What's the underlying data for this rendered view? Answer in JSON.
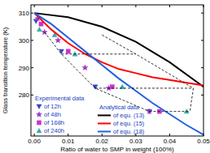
{
  "chart_data": {
    "type": "scatter",
    "xlabel": "Ratio of water to SMP in weight (100%)",
    "ylabel": "Glass transition temperature (K)",
    "xlim": [
      -0.001,
      0.05
    ],
    "ylim": [
      265,
      313
    ],
    "xticks": [
      {
        "value": 0,
        "label": "0.00"
      },
      {
        "value": 0.01,
        "label": "0.01"
      },
      {
        "value": 0.02,
        "label": "0.02"
      },
      {
        "value": 0.03,
        "label": "0.03"
      },
      {
        "value": 0.04,
        "label": "0.04"
      },
      {
        "value": 0.05,
        "label": "0.05"
      }
    ],
    "yticks": [
      280,
      290,
      300,
      310
    ],
    "legend": "lower left",
    "annotations": [
      "Experimental data",
      "Analytical data"
    ],
    "series": [
      {
        "name": "of 12h",
        "type": "scatter",
        "marker": "triangle-down",
        "color": "#3344cc",
        "x": [
          0.0005,
          0.008,
          0.018,
          0.034
        ],
        "values": [
          307,
          296,
          283,
          274
        ]
      },
      {
        "name": "of 48h",
        "type": "scatter",
        "marker": "star",
        "color": "#9933cc",
        "x": [
          0.001,
          0.003,
          0.007,
          0.015,
          0.022,
          0.034
        ],
        "values": [
          308,
          303,
          300,
          290,
          282.5,
          274
        ]
      },
      {
        "name": "of 168h",
        "type": "scatter",
        "marker": "square",
        "color": "#cc33cc",
        "x": [
          0.002,
          0.01,
          0.023,
          0.037
        ],
        "values": [
          306,
          296,
          283,
          274
        ]
      },
      {
        "name": "of 240h",
        "type": "scatter",
        "marker": "triangle-up",
        "color": "#33aaaa",
        "x": [
          0.0015,
          0.006,
          0.012,
          0.026,
          0.045
        ],
        "values": [
          304,
          302,
          295,
          283,
          274
        ]
      },
      {
        "name": "of equ. (13)",
        "type": "line",
        "line_style": "solid",
        "color": "#000000",
        "x": [
          0,
          0.01,
          0.02,
          0.03,
          0.04,
          0.05
        ],
        "values": [
          310,
          308.5,
          305,
          299.5,
          292,
          283
        ]
      },
      {
        "name": "of equ. (15)",
        "type": "line",
        "line_style": "solid",
        "color": "#ff0000",
        "x": [
          0,
          0.005,
          0.01,
          0.015,
          0.02,
          0.025,
          0.03,
          0.035,
          0.04,
          0.045,
          0.05
        ],
        "values": [
          310,
          304,
          299,
          295,
          292,
          289.5,
          288,
          286.5,
          285.5,
          284.5,
          283.5
        ]
      },
      {
        "name": "of equ. (18)",
        "type": "line",
        "line_style": "solid",
        "color": "#2060e0",
        "x": [
          0,
          0.005,
          0.01,
          0.015,
          0.02,
          0.025,
          0.03,
          0.035,
          0.04,
          0.045,
          0.05
        ],
        "values": [
          310,
          306,
          301,
          296,
          291,
          286,
          281.5,
          277,
          273,
          269,
          265.5
        ]
      },
      {
        "type": "line",
        "line_style": "dashed",
        "color": "#000000",
        "x": [
          0.008,
          0.03,
          null,
          0.018,
          0.047,
          null,
          0.034,
          0.046,
          null,
          0.003,
          0.008,
          0.018,
          0.034,
          null,
          0.02,
          0.03,
          0.047,
          0.046
        ],
        "values": [
          295,
          295,
          null,
          282.5,
          282.5,
          null,
          274,
          274,
          null,
          303,
          295,
          282.5,
          274,
          null,
          302,
          295,
          282.5,
          274
        ]
      }
    ]
  }
}
